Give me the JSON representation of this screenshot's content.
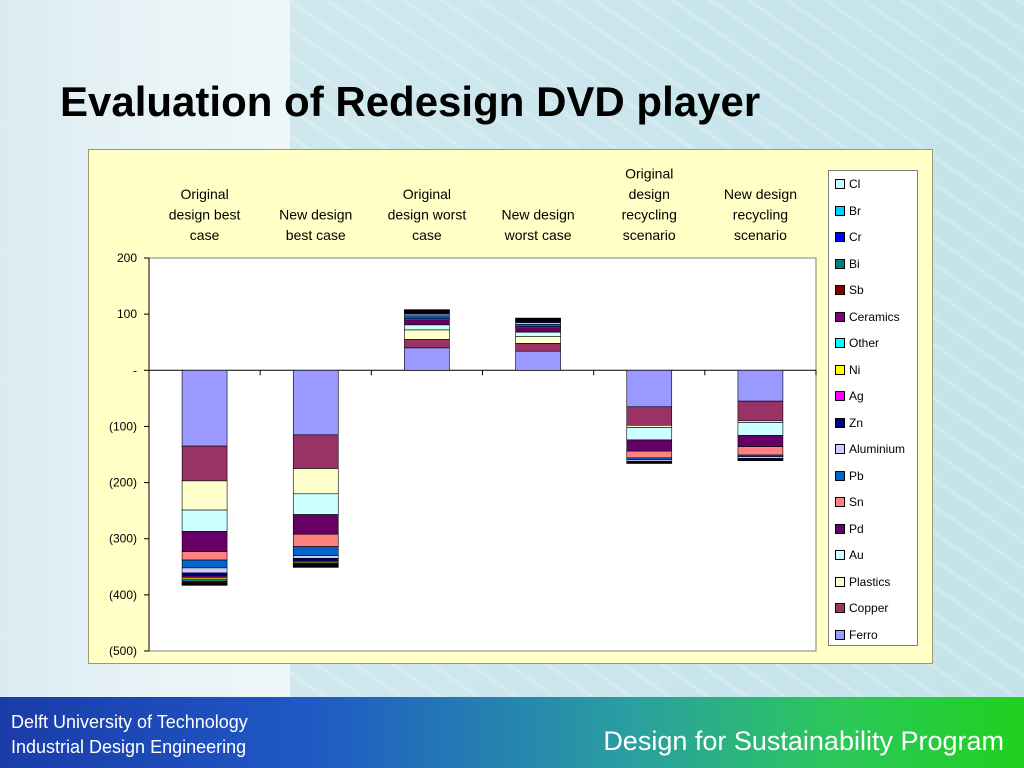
{
  "slide": {
    "title": "Evaluation of Redesign DVD player"
  },
  "footer": {
    "org_line1": "Delft University of Technology",
    "org_line2": "Industrial Design Engineering",
    "program": "Design for Sustainability Program"
  },
  "colors": {
    "panel_background": "#ffffc6",
    "footer_start": "#1a3ca8",
    "footer_end": "#20d020"
  },
  "chart_data": {
    "type": "bar",
    "stacked": true,
    "title": "",
    "xlabel": "",
    "ylabel": "",
    "ylim": [
      -500,
      200
    ],
    "yticks": [
      200,
      100,
      0,
      -100,
      -200,
      -300,
      -400,
      -500
    ],
    "ytick_labels": [
      "200",
      "100",
      "-",
      "(100)",
      "(200)",
      "(300)",
      "(400)",
      "(500)"
    ],
    "grid": false,
    "legend_position": "right",
    "categories": [
      "Original design best case",
      "New design best case",
      "Original design worst case",
      "New design worst case",
      "Original design recycling scenario",
      "New design recycling scenario"
    ],
    "series": [
      {
        "name": "Ferro",
        "color": "#9999ff",
        "values": [
          -135,
          -115,
          40,
          34,
          -65,
          -55
        ]
      },
      {
        "name": "Copper",
        "color": "#993366",
        "values": [
          -62,
          -60,
          15,
          14,
          -33,
          -35
        ]
      },
      {
        "name": "Plastics",
        "color": "#ffffcc",
        "values": [
          -52,
          -45,
          17,
          12,
          -4,
          -3
        ]
      },
      {
        "name": "Au",
        "color": "#ccffff",
        "values": [
          -38,
          -37,
          9,
          8,
          -22,
          -23
        ]
      },
      {
        "name": "Pd",
        "color": "#660066",
        "values": [
          -36,
          -35,
          9,
          8,
          -20,
          -20
        ]
      },
      {
        "name": "Sn",
        "color": "#ff8080",
        "values": [
          -15,
          -22,
          2,
          2,
          -12,
          -15
        ]
      },
      {
        "name": "Pb",
        "color": "#0066cc",
        "values": [
          -14,
          -16,
          5,
          4,
          -3,
          -3
        ]
      },
      {
        "name": "Aluminium",
        "color": "#ccccff",
        "values": [
          -9,
          -5,
          3,
          3,
          -3,
          -3
        ]
      },
      {
        "name": "Zn",
        "color": "#000080",
        "values": [
          -6,
          -5,
          3,
          3,
          -2,
          -2
        ]
      },
      {
        "name": "Ag",
        "color": "#ff00ff",
        "values": [
          -3,
          -2,
          1,
          1,
          -1,
          -1
        ]
      },
      {
        "name": "Ni",
        "color": "#ffff00",
        "values": [
          -3,
          -2,
          1,
          1,
          -1,
          -1
        ]
      },
      {
        "name": "Other",
        "color": "#00ffff",
        "values": [
          -2,
          -1,
          1,
          1,
          0,
          0
        ]
      },
      {
        "name": "Ceramics",
        "color": "#800080",
        "values": [
          -2,
          -1,
          1,
          1,
          0,
          0
        ]
      },
      {
        "name": "Sb",
        "color": "#800000",
        "values": [
          -2,
          -1,
          1,
          1,
          0,
          0
        ]
      },
      {
        "name": "Bi",
        "color": "#008080",
        "values": [
          -1,
          -1,
          0,
          0,
          0,
          0
        ]
      },
      {
        "name": "Cr",
        "color": "#0000ff",
        "values": [
          -1,
          -1,
          0,
          0,
          0,
          0
        ]
      },
      {
        "name": "Br",
        "color": "#00ccff",
        "values": [
          -1,
          -1,
          0,
          0,
          0,
          0
        ]
      },
      {
        "name": "Cl",
        "color": "#ccffff",
        "values": [
          -1,
          -1,
          0,
          0,
          0,
          0
        ]
      }
    ]
  }
}
